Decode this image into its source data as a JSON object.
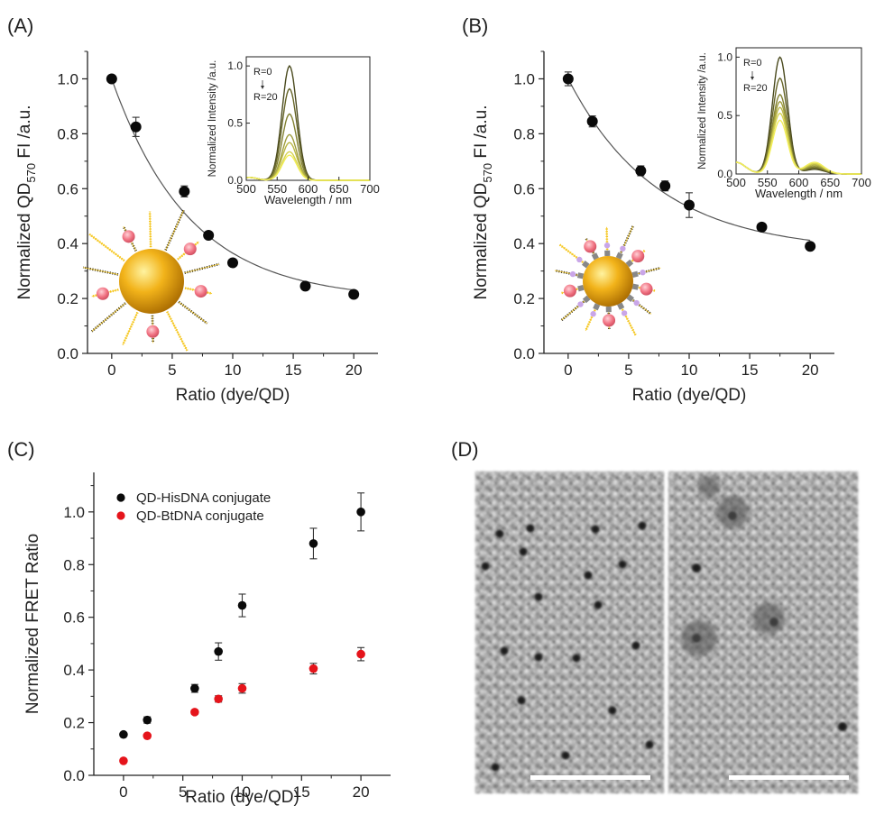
{
  "panels": {
    "a": {
      "label": "(A)"
    },
    "b": {
      "label": "(B)"
    },
    "c": {
      "label": "(C)"
    },
    "d": {
      "label": "(D)"
    }
  },
  "colors": {
    "marker": "#0a0a0a",
    "marker_red": "#e5141b",
    "fit_line": "#555555",
    "spectrum_dark": "#4a4a1e",
    "spectrum_light": "#f2ee5a",
    "qd_gold": "#f2b31a",
    "strand_yellow": "#f5c518",
    "dye_pink": "#f07080",
    "linker_purple": "#c9a6e8",
    "tem_bg": "#b4b4b4"
  },
  "chart_data": [
    {
      "panel": "A",
      "type": "scatter",
      "x": [
        0,
        2,
        6,
        8,
        10,
        16,
        20
      ],
      "y": [
        1.0,
        0.825,
        0.59,
        0.43,
        0.33,
        0.245,
        0.215
      ],
      "yerr": [
        0.01,
        0.035,
        0.02,
        0.012,
        0.01,
        0.012,
        0.01
      ],
      "fit": "exponential decay",
      "xlabel": "Ratio (dye/QD)",
      "ylabel_main": "Normalized  QD",
      "ylabel_sub": "570",
      "ylabel_tail": " FI /a.u.",
      "xlim": [
        -2,
        22
      ],
      "ylim": [
        0.0,
        1.1
      ],
      "xticks": [
        "0",
        "5",
        "10",
        "15",
        "20"
      ],
      "yticks": [
        "0.0",
        "0.2",
        "0.4",
        "0.6",
        "0.8",
        "1.0"
      ],
      "inset": {
        "type": "line",
        "xlabel": "Wavelength / nm",
        "ylabel": "Normalized  Intensity /a.u.",
        "xticks": [
          "500",
          "550",
          "600",
          "650",
          "700"
        ],
        "yticks": [
          "0.0",
          "0.5",
          "1.0"
        ],
        "xlim": [
          500,
          700
        ],
        "ylim": [
          0,
          1.08
        ],
        "annot_top": "R=0",
        "annot_bottom": "R=20",
        "peak_nm": 570,
        "peak_heights": [
          1.0,
          0.8,
          0.58,
          0.4,
          0.33,
          0.25,
          0.22
        ]
      }
    },
    {
      "panel": "B",
      "type": "scatter",
      "x": [
        0,
        2,
        6,
        8,
        10,
        16,
        20
      ],
      "y": [
        1.0,
        0.845,
        0.665,
        0.61,
        0.54,
        0.46,
        0.39
      ],
      "yerr": [
        0.025,
        0.02,
        0.018,
        0.018,
        0.045,
        0.012,
        0.012
      ],
      "fit": "exponential decay",
      "xlabel": "Ratio (dye/QD)",
      "ylabel_main": "Normalized QD",
      "ylabel_sub": "570",
      "ylabel_tail": " FI /a.u.",
      "xlim": [
        -2,
        22
      ],
      "ylim": [
        0.0,
        1.1
      ],
      "xticks": [
        "0",
        "5",
        "10",
        "15",
        "20"
      ],
      "yticks": [
        "0.0",
        "0.2",
        "0.4",
        "0.6",
        "0.8",
        "1.0"
      ],
      "inset": {
        "type": "line",
        "xlabel": "Wavelength / nm",
        "ylabel": "Normalized  Intensity /a.u.",
        "xticks": [
          "500",
          "550",
          "600",
          "650",
          "700"
        ],
        "yticks": [
          "0.0",
          "0.5",
          "1.0"
        ],
        "xlim": [
          500,
          700
        ],
        "ylim": [
          0,
          1.08
        ],
        "annot_top": "R=0",
        "annot_bottom": "R=20",
        "peak_nm": 570,
        "peak_heights": [
          1.0,
          0.82,
          0.68,
          0.62,
          0.57,
          0.52,
          0.46
        ]
      }
    },
    {
      "panel": "C",
      "type": "scatter",
      "xlabel": "Ratio (dye/QD)",
      "ylabel": "Normalized FRET Ratio",
      "xlim": [
        -2.5,
        22.5
      ],
      "ylim": [
        0.0,
        1.15
      ],
      "xticks": [
        "0",
        "5",
        "10",
        "15",
        "20"
      ],
      "yticks": [
        "0.0",
        "0.2",
        "0.4",
        "0.6",
        "0.8",
        "1.0"
      ],
      "legend_position": "top-left",
      "series": [
        {
          "name": "QD-HisDNA conjugate",
          "color": "#0a0a0a",
          "x": [
            0,
            2,
            6,
            8,
            10,
            16,
            20
          ],
          "y": [
            0.155,
            0.21,
            0.33,
            0.47,
            0.645,
            0.88,
            1.0
          ],
          "yerr": [
            0.005,
            0.012,
            0.015,
            0.033,
            0.043,
            0.058,
            0.072
          ]
        },
        {
          "name": "QD-BtDNA conjugate",
          "color": "#e5141b",
          "x": [
            0,
            2,
            6,
            8,
            10,
            16,
            20
          ],
          "y": [
            0.055,
            0.15,
            0.24,
            0.29,
            0.33,
            0.405,
            0.46
          ],
          "yerr": [
            0.005,
            0.005,
            0.008,
            0.012,
            0.018,
            0.02,
            0.025
          ]
        }
      ]
    }
  ]
}
